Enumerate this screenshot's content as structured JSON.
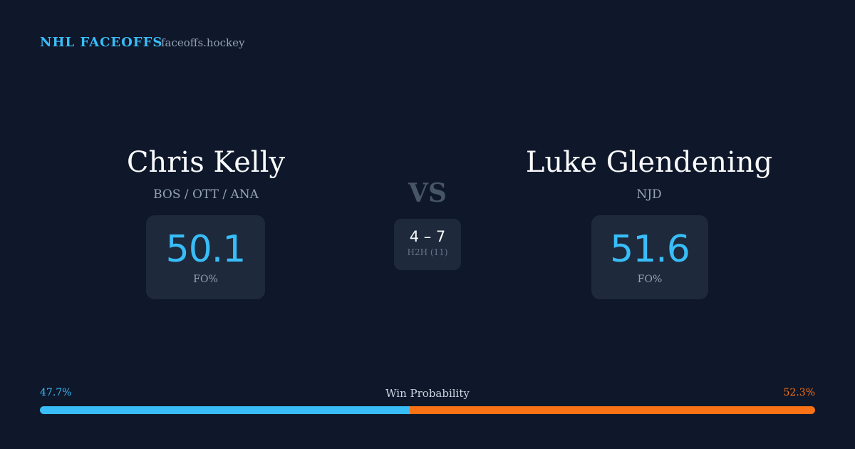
{
  "header": {
    "brand": "NHL FACEOFFS",
    "site": "faceoffs.hockey"
  },
  "players": [
    {
      "name": "Chris Kelly",
      "teams": "BOS / OTT / ANA",
      "stat": "50.1",
      "stat_label": "FO%"
    },
    {
      "name": "Luke Glendening",
      "teams": "NJD",
      "stat": "51.6",
      "stat_label": "FO%"
    }
  ],
  "versus": {
    "label": "VS",
    "score": "4 – 7",
    "sub": "H2H (11)"
  },
  "win_probability": {
    "title": "Win Probability",
    "left": {
      "value": 47.7,
      "label": "47.7%",
      "color": "#38bdf8"
    },
    "right": {
      "value": 52.3,
      "label": "52.3%",
      "color": "#f97316"
    }
  }
}
